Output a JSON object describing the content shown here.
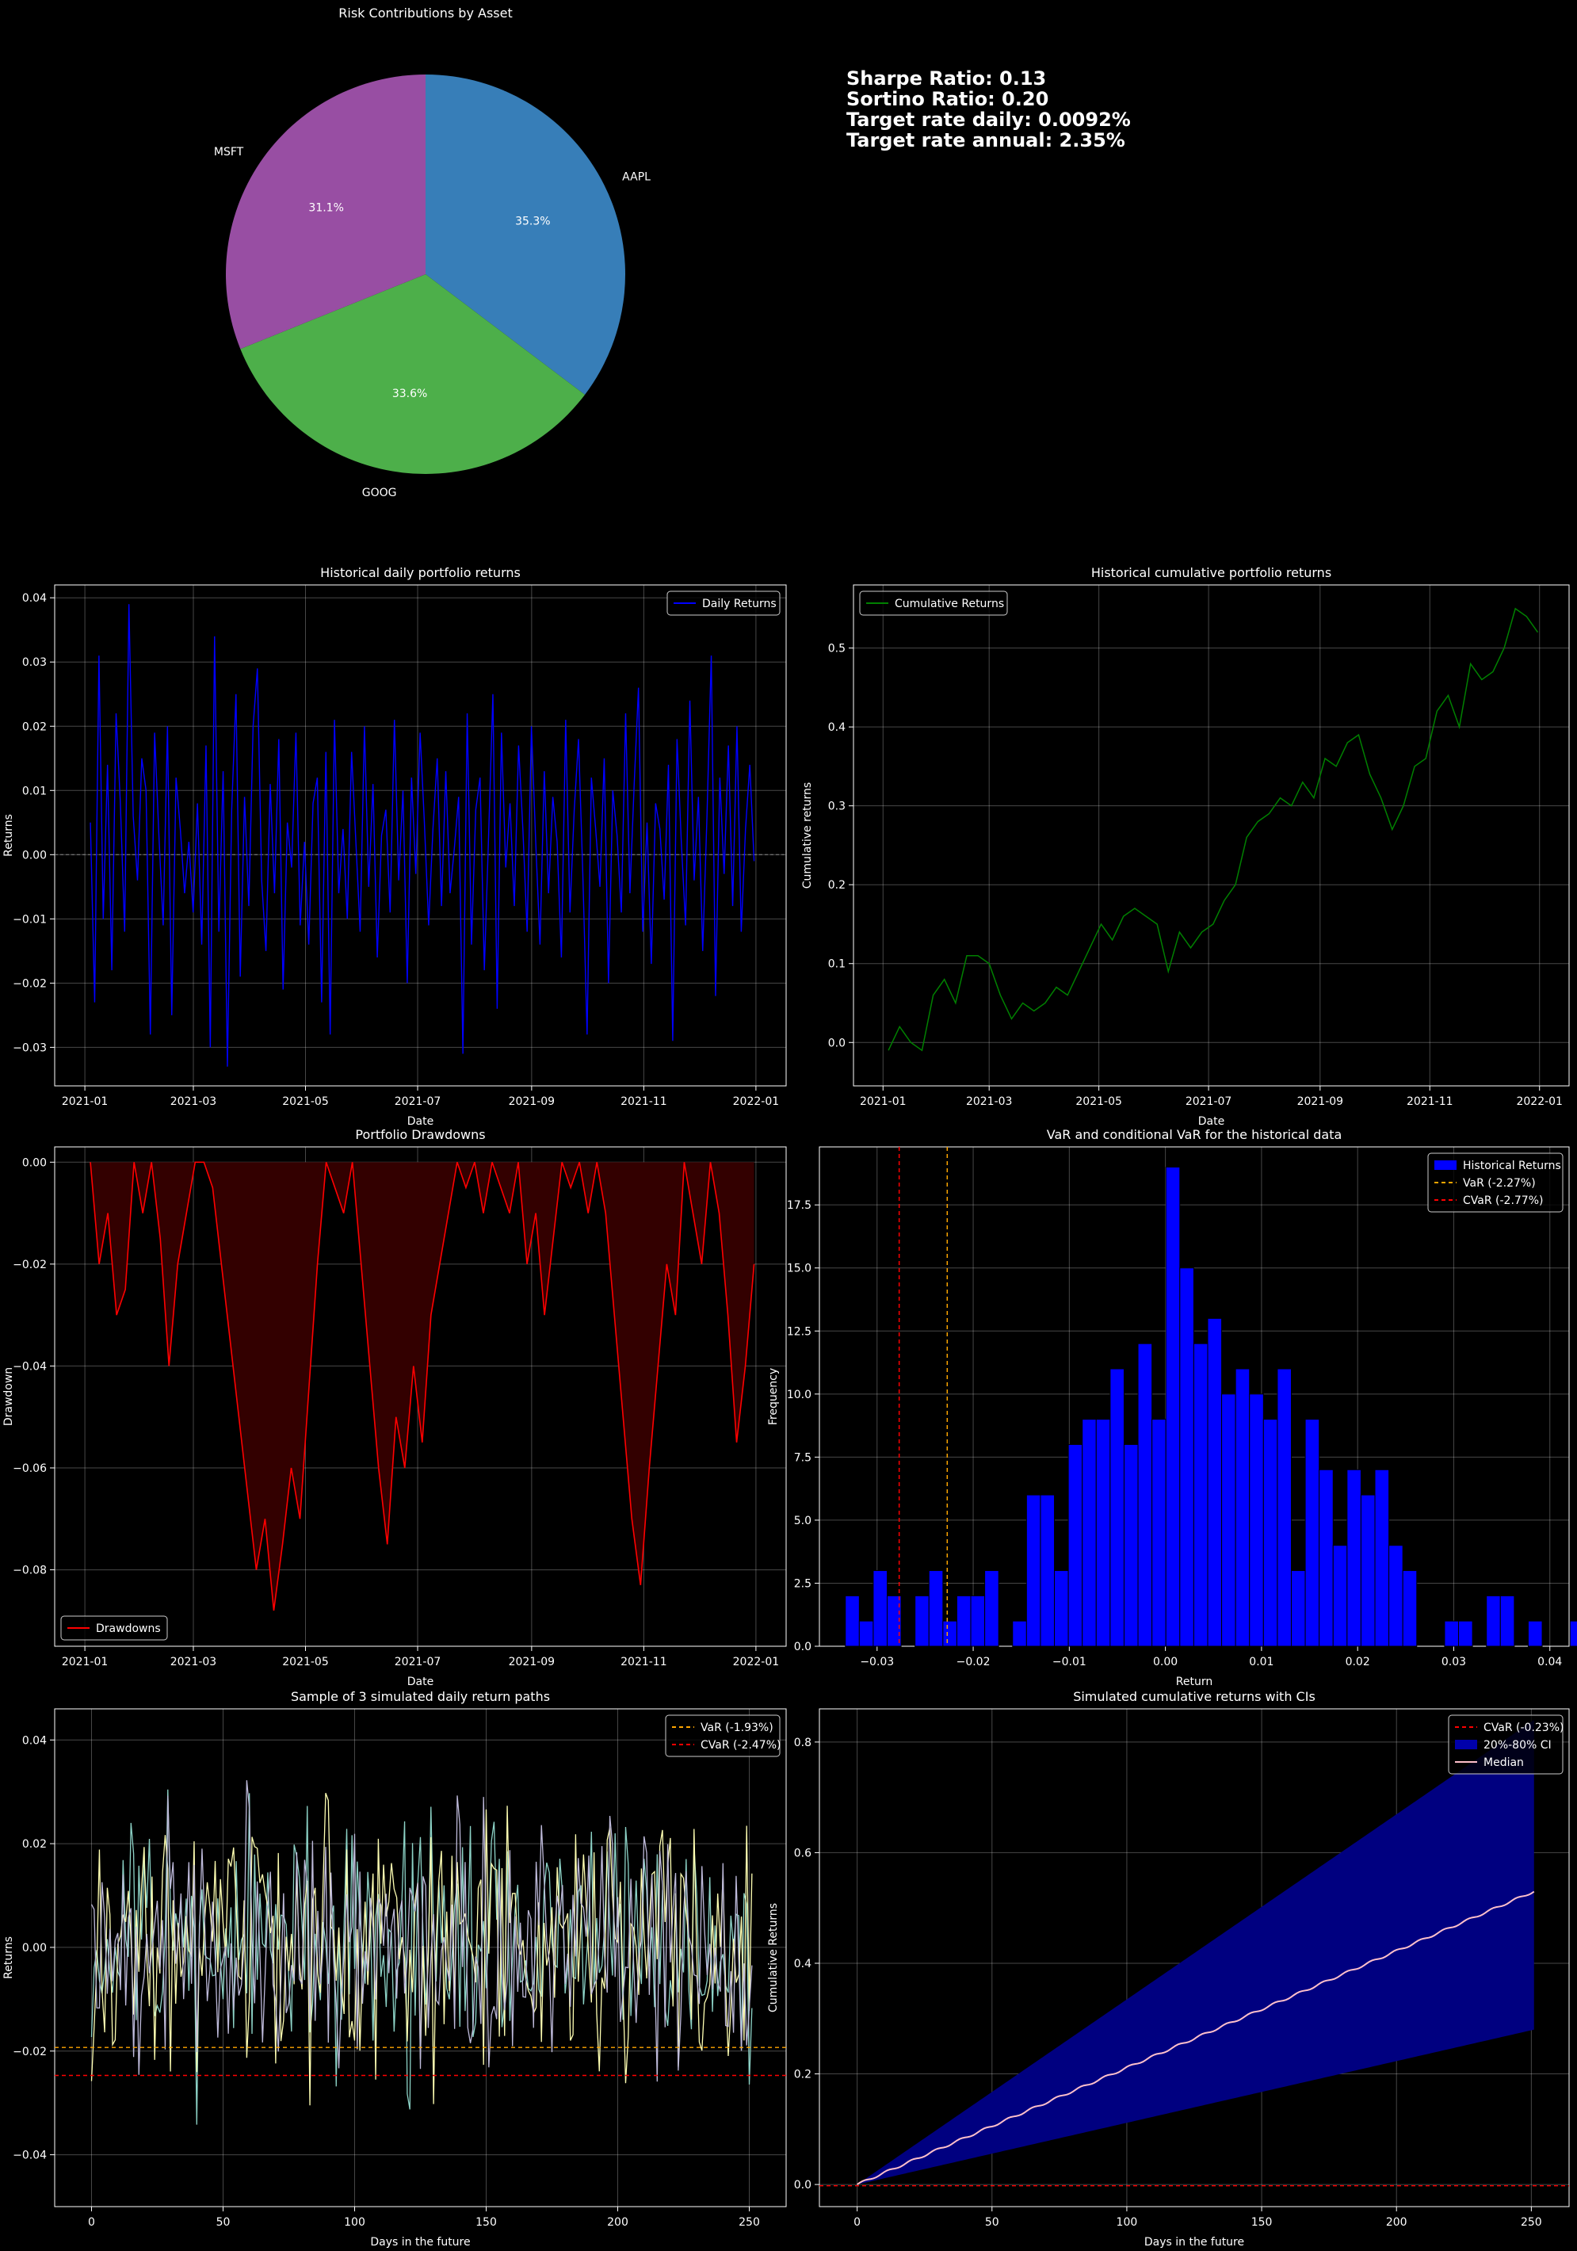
{
  "stats": {
    "sharpe": "Sharpe Ratio: 0.13",
    "sortino": "Sortino Ratio: 0.20",
    "target_daily": "Target rate daily: 0.0092%",
    "target_annual": "Target rate annual: 2.35%"
  },
  "chart_data": [
    {
      "id": "pie",
      "type": "pie",
      "title": "Risk Contributions by Asset",
      "slices": [
        {
          "label": "AAPL",
          "value": 35.3,
          "pct_label": "35.3%",
          "color": "#377eb8"
        },
        {
          "label": "GOOG",
          "value": 33.6,
          "pct_label": "33.6%",
          "color": "#4daf4a"
        },
        {
          "label": "MSFT",
          "value": 31.1,
          "pct_label": "31.1%",
          "color": "#984ea3"
        }
      ]
    },
    {
      "id": "daily",
      "type": "line",
      "title": "Historical daily portfolio returns",
      "xlabel": "Date",
      "ylabel": "Returns",
      "xticks": [
        "2021-01",
        "2021-03",
        "2021-05",
        "2021-07",
        "2021-09",
        "2021-11",
        "2022-01"
      ],
      "yticks": [
        "0.04",
        "0.03",
        "0.02",
        "0.01",
        "0.00",
        "−0.01",
        "−0.02",
        "−0.03"
      ],
      "ylim": [
        -0.036,
        0.042
      ],
      "legend": "top-right",
      "series": [
        {
          "name": "Daily Returns",
          "color": "#0000ff",
          "start": "2021-01-04",
          "end": "2021-12-31",
          "values": [
            0.005,
            -0.023,
            0.031,
            -0.01,
            0.014,
            -0.018,
            0.022,
            0.008,
            -0.012,
            0.039,
            0.006,
            -0.004,
            0.015,
            0.01,
            -0.028,
            0.019,
            0.003,
            -0.011,
            0.02,
            -0.025,
            0.012,
            0.004,
            -0.006,
            0.002,
            -0.009,
            0.008,
            -0.014,
            0.017,
            -0.03,
            0.034,
            -0.012,
            0.013,
            -0.033,
            0.007,
            0.025,
            -0.019,
            0.009,
            -0.008,
            0.02,
            0.029,
            -0.004,
            -0.015,
            0.011,
            -0.006,
            0.018,
            -0.021,
            0.005,
            -0.002,
            0.019,
            -0.011,
            0.002,
            -0.014,
            0.008,
            0.012,
            -0.023,
            0.016,
            -0.028,
            0.021,
            -0.006,
            0.004,
            -0.01,
            0.016,
            0.002,
            -0.012,
            0.02,
            -0.005,
            0.011,
            -0.016,
            0.003,
            0.007,
            -0.009,
            0.021,
            -0.004,
            0.01,
            -0.02,
            0.012,
            -0.003,
            0.019,
            0.005,
            -0.011,
            0.004,
            0.015,
            -0.008,
            0.013,
            -0.006,
            0.001,
            0.009,
            -0.031,
            0.022,
            -0.014,
            0.007,
            0.012,
            -0.018,
            0.003,
            0.025,
            -0.024,
            0.019,
            -0.002,
            0.008,
            -0.008,
            0.017,
            0.004,
            -0.012,
            0.02,
            0.002,
            -0.014,
            0.013,
            -0.006,
            0.009,
            0.002,
            -0.016,
            0.021,
            -0.009,
            0.007,
            0.018,
            -0.003,
            -0.028,
            0.012,
            0.004,
            -0.005,
            0.015,
            -0.02,
            0.01,
            0.003,
            -0.009,
            0.022,
            -0.006,
            0.011,
            0.026,
            -0.012,
            0.005,
            -0.017,
            0.008,
            0.004,
            -0.007,
            0.014,
            -0.029,
            0.018,
            0.002,
            -0.011,
            0.024,
            -0.004,
            0.009,
            -0.015,
            0.006,
            0.031,
            -0.022,
            0.012,
            -0.003,
            0.017,
            -0.008,
            0.02,
            -0.012,
            0.004,
            0.014,
            -0.001
          ]
        }
      ]
    },
    {
      "id": "cumulative",
      "type": "line",
      "title": "Historical cumulative portfolio returns",
      "xlabel": "Date",
      "ylabel": "Cumulative returns",
      "xticks": [
        "2021-01",
        "2021-03",
        "2021-05",
        "2021-07",
        "2021-09",
        "2021-11",
        "2022-01"
      ],
      "yticks": [
        "0.5",
        "0.4",
        "0.3",
        "0.2",
        "0.1",
        "0.0"
      ],
      "ylim": [
        -0.055,
        0.58
      ],
      "legend": "top-left",
      "series": [
        {
          "name": "Cumulative Returns",
          "color": "#008000",
          "start": "2021-01-04",
          "end": "2021-12-31",
          "values": [
            -0.01,
            0.02,
            0.0,
            -0.01,
            0.06,
            0.08,
            0.05,
            0.11,
            0.11,
            0.1,
            0.06,
            0.03,
            0.05,
            0.04,
            0.05,
            0.07,
            0.06,
            0.09,
            0.12,
            0.15,
            0.13,
            0.16,
            0.17,
            0.16,
            0.15,
            0.09,
            0.14,
            0.12,
            0.14,
            0.15,
            0.18,
            0.2,
            0.26,
            0.28,
            0.29,
            0.31,
            0.3,
            0.33,
            0.31,
            0.36,
            0.35,
            0.38,
            0.39,
            0.34,
            0.31,
            0.27,
            0.3,
            0.35,
            0.36,
            0.42,
            0.44,
            0.4,
            0.48,
            0.46,
            0.47,
            0.5,
            0.55,
            0.54,
            0.52
          ]
        }
      ]
    },
    {
      "id": "drawdown",
      "type": "area",
      "title": "Portfolio Drawdowns",
      "xlabel": "Date",
      "ylabel": "Drawdown",
      "xticks": [
        "2021-01",
        "2021-03",
        "2021-05",
        "2021-07",
        "2021-09",
        "2021-11",
        "2022-01"
      ],
      "yticks": [
        "0.00",
        "−0.02",
        "−0.04",
        "−0.06",
        "−0.08"
      ],
      "ylim": [
        -0.095,
        0.003
      ],
      "legend": "bottom-left",
      "series": [
        {
          "name": "Drawdowns",
          "color": "#ff0000",
          "fill": "#330000",
          "start": "2021-01-04",
          "end": "2021-12-31",
          "values": [
            0,
            -0.02,
            -0.01,
            -0.03,
            -0.025,
            0,
            -0.01,
            0,
            -0.015,
            -0.04,
            -0.02,
            -0.01,
            0,
            0,
            -0.005,
            -0.02,
            -0.035,
            -0.05,
            -0.065,
            -0.08,
            -0.07,
            -0.088,
            -0.075,
            -0.06,
            -0.07,
            -0.045,
            -0.02,
            0,
            -0.005,
            -0.01,
            0,
            -0.02,
            -0.04,
            -0.06,
            -0.075,
            -0.05,
            -0.06,
            -0.04,
            -0.055,
            -0.03,
            -0.02,
            -0.01,
            0,
            -0.005,
            0,
            -0.01,
            0,
            -0.005,
            -0.01,
            0,
            -0.02,
            -0.01,
            -0.03,
            -0.015,
            0,
            -0.005,
            0,
            -0.01,
            0,
            -0.01,
            -0.03,
            -0.05,
            -0.07,
            -0.083,
            -0.06,
            -0.04,
            -0.02,
            -0.03,
            0,
            -0.01,
            -0.02,
            0,
            -0.01,
            -0.03,
            -0.055,
            -0.04,
            -0.02
          ]
        }
      ]
    },
    {
      "id": "hist",
      "type": "bar",
      "title": "VaR and conditional VaR for the historical data",
      "xlabel": "Return",
      "ylabel": "Frequency",
      "xticks": [
        "−0.03",
        "−0.02",
        "−0.01",
        "0.00",
        "0.01",
        "0.02",
        "0.03",
        "0.04"
      ],
      "yticks": [
        "17.5",
        "15.0",
        "12.5",
        "10.0",
        "7.5",
        "5.0",
        "2.5",
        "0.0"
      ],
      "xlim": [
        -0.036,
        0.042
      ],
      "ylim": [
        0,
        19.8
      ],
      "legend": "top-right",
      "bins": {
        "start": -0.0333,
        "width": 0.00145,
        "counts": [
          2,
          1,
          3,
          2,
          0,
          2,
          3,
          1,
          2,
          2,
          3,
          0,
          1,
          6,
          6,
          3,
          8,
          9,
          9,
          11,
          8,
          12,
          9,
          19,
          15,
          12,
          13,
          10,
          11,
          10,
          9,
          11,
          3,
          9,
          7,
          4,
          7,
          6,
          7,
          4,
          3,
          0,
          0,
          1,
          1,
          0,
          2,
          2,
          0,
          1,
          0,
          0,
          1
        ]
      },
      "series": [
        {
          "name": "Historical Returns",
          "color": "#0000ff"
        }
      ],
      "lines": [
        {
          "name": "VaR (-2.27%)",
          "x": -0.0227,
          "color": "#ffa500"
        },
        {
          "name": "CVaR (-2.77%)",
          "x": -0.0277,
          "color": "#ff0000"
        }
      ]
    },
    {
      "id": "sim",
      "type": "line",
      "title": "Sample of 3 simulated daily return paths",
      "xlabel": "Days in the future",
      "ylabel": "Returns",
      "xticks": [
        "0",
        "50",
        "100",
        "150",
        "200",
        "250"
      ],
      "yticks": [
        "0.04",
        "0.02",
        "0.00",
        "−0.02",
        "−0.04"
      ],
      "xlim": [
        -14,
        264
      ],
      "ylim": [
        -0.05,
        0.046
      ],
      "legend": "top-right",
      "series": [
        {
          "color": "#8dd3c7",
          "seed": 11,
          "days": 252,
          "amp": 0.012
        },
        {
          "color": "#ffffb3",
          "seed": 23,
          "days": 252,
          "amp": 0.012
        },
        {
          "color": "#bebada",
          "seed": 37,
          "days": 252,
          "amp": 0.012
        }
      ],
      "lines": [
        {
          "name": "VaR (-1.93%)",
          "y": -0.0193,
          "color": "#ffa500"
        },
        {
          "name": "CVaR (-2.47%)",
          "y": -0.0247,
          "color": "#ff0000"
        }
      ]
    },
    {
      "id": "ci",
      "type": "area",
      "title": "Simulated cumulative returns with CIs",
      "xlabel": "Days in the future",
      "ylabel": "Cumulative Returns",
      "xticks": [
        "0",
        "50",
        "100",
        "150",
        "200",
        "250"
      ],
      "yticks": [
        "0.8",
        "0.6",
        "0.4",
        "0.2",
        "0.0"
      ],
      "xlim": [
        -14,
        264
      ],
      "ylim": [
        -0.04,
        0.86
      ],
      "legend": "top-right",
      "series": [
        {
          "name": "CVaR (-0.23%)",
          "y": -0.0023,
          "color": "#ff0000"
        },
        {
          "name": "20%-80% CI",
          "color": "#000080",
          "lower_end": 0.28,
          "upper_end": 0.84
        },
        {
          "name": "Median",
          "color": "#ffc0cb",
          "end": 0.53
        }
      ]
    }
  ]
}
